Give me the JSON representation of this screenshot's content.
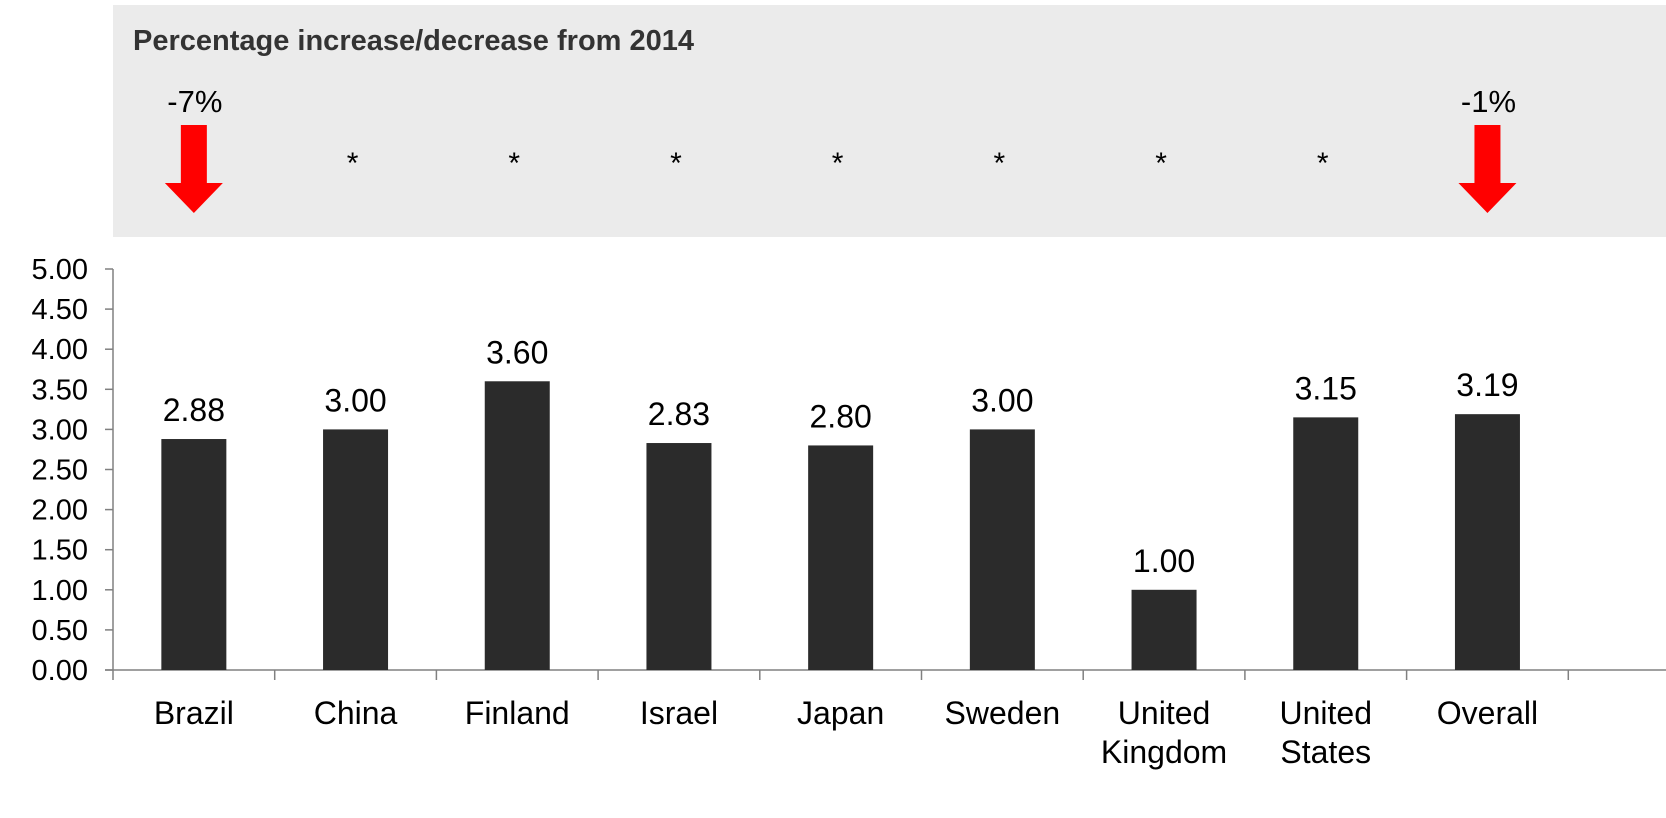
{
  "panel": {
    "title": "Percentage increase/decrease from 2014",
    "background": "#ebebeb",
    "arrow_color": "#ff0000",
    "changes": [
      {
        "category": "Brazil",
        "label": "-7%",
        "direction": "down"
      },
      {
        "category": "China",
        "label": "*",
        "direction": "none"
      },
      {
        "category": "Finland",
        "label": "*",
        "direction": "none"
      },
      {
        "category": "Israel",
        "label": "*",
        "direction": "none"
      },
      {
        "category": "Japan",
        "label": "*",
        "direction": "none"
      },
      {
        "category": "Sweden",
        "label": "*",
        "direction": "none"
      },
      {
        "category": "United Kingdom",
        "label": "*",
        "direction": "none"
      },
      {
        "category": "United States",
        "label": "*",
        "direction": "none"
      },
      {
        "category": "Overall",
        "label": "-1%",
        "direction": "down"
      }
    ]
  },
  "chart_data": {
    "type": "bar",
    "categories": [
      "Brazil",
      "China",
      "Finland",
      "Israel",
      "Japan",
      "Sweden",
      "United Kingdom",
      "United States",
      "Overall"
    ],
    "category_lines": [
      [
        "Brazil"
      ],
      [
        "China"
      ],
      [
        "Finland"
      ],
      [
        "Israel"
      ],
      [
        "Japan"
      ],
      [
        "Sweden"
      ],
      [
        "United",
        "Kingdom"
      ],
      [
        "United",
        "States"
      ],
      [
        "Overall"
      ]
    ],
    "values": [
      2.88,
      3.0,
      3.6,
      2.83,
      2.8,
      3.0,
      1.0,
      3.15,
      3.19
    ],
    "data_labels": [
      "2.88",
      "3.00",
      "3.60",
      "2.83",
      "2.80",
      "3.00",
      "1.00",
      "3.15",
      "3.19"
    ],
    "ylim": [
      0,
      5
    ],
    "yticks": [
      "0.00",
      "0.50",
      "1.00",
      "1.50",
      "2.00",
      "2.50",
      "3.00",
      "3.50",
      "4.00",
      "4.50",
      "5.00"
    ],
    "bar_color": "#2b2b2b",
    "grid": false,
    "legend": "none"
  }
}
